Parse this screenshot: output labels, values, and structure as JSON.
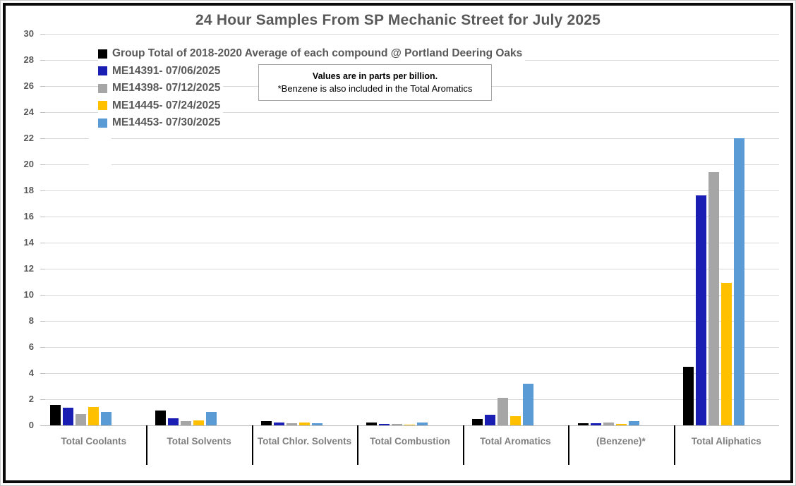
{
  "title": "24 Hour Samples From SP Mechanic Street for July 2025",
  "note_box": {
    "line1": "Values are in parts per billion.",
    "line2": "*Benzene is also included in the Total Aromatics"
  },
  "colors": {
    "gridline": "#d9d9d9",
    "axis_text": "#595959",
    "category_text": "#7f7f7f",
    "chart_border": "#0a0a0a"
  },
  "chart_data": {
    "type": "bar",
    "title": "24 Hour Samples From SP Mechanic Street for July 2025",
    "xlabel": "",
    "ylabel": "",
    "unit": "parts per billion",
    "ylim": [
      0,
      30
    ],
    "ytick_step": 2,
    "grid": true,
    "legend_position": "top-left",
    "categories": [
      "Total Coolants",
      "Total Solvents",
      "Total Chlor. Solvents",
      "Total Combustion",
      "Total Aromatics",
      "(Benzene)*",
      "Total Aliphatics"
    ],
    "series": [
      {
        "name": "Group Total of 2018-2020 Average of each compound @ Portland Deering Oaks",
        "color": "#000000",
        "values": [
          1.55,
          1.15,
          0.3,
          0.2,
          0.5,
          0.15,
          4.5
        ]
      },
      {
        "name": "ME14391- 07/06/2025",
        "color": "#1a1eb2",
        "values": [
          1.35,
          0.55,
          0.2,
          0.1,
          0.8,
          0.15,
          17.6
        ]
      },
      {
        "name": "ME14398- 07/12/2025",
        "color": "#a6a6a6",
        "values": [
          0.85,
          0.3,
          0.15,
          0.1,
          2.1,
          0.2,
          19.4
        ]
      },
      {
        "name": "ME14445- 07/24/2025",
        "color": "#ffc000",
        "values": [
          1.4,
          0.4,
          0.2,
          0.05,
          0.7,
          0.1,
          10.9
        ]
      },
      {
        "name": "ME14453- 07/30/2025",
        "color": "#5b9bd5",
        "values": [
          1.0,
          1.05,
          0.15,
          0.2,
          3.2,
          0.35,
          22.0
        ]
      }
    ]
  }
}
